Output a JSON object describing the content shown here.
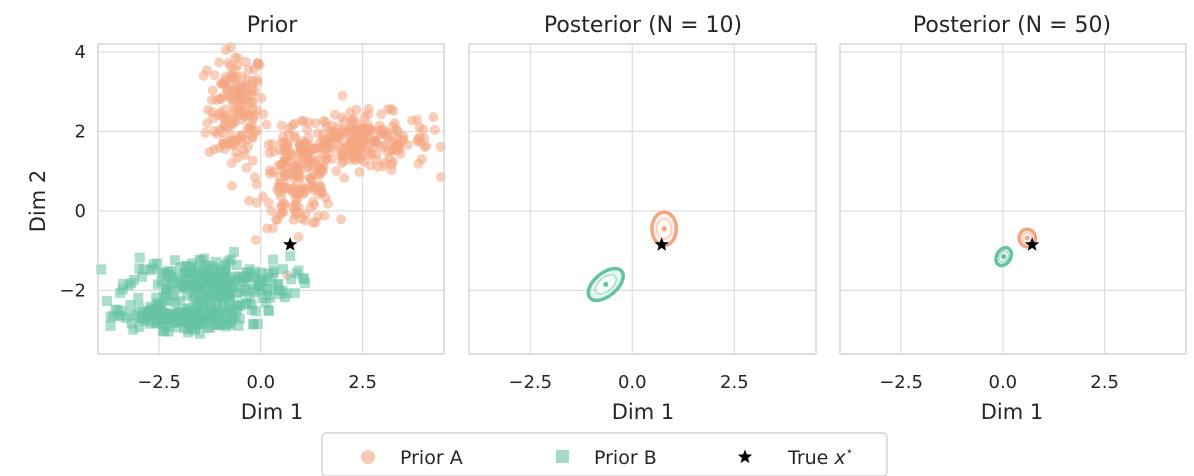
{
  "chart_data": [
    {
      "type": "scatter",
      "title": "Prior",
      "xlabel": "Dim 1",
      "ylabel": "Dim 2",
      "xlim": [
        -4.0,
        4.5
      ],
      "ylim": [
        -3.6,
        4.2
      ],
      "xticks": [
        -2.5,
        0.0,
        2.5
      ],
      "xtick_labels": [
        "−2.5",
        "0.0",
        "2.5"
      ],
      "yticks": [
        -2,
        0,
        2,
        4
      ],
      "ytick_labels": [
        "−2",
        "0",
        "2",
        "4"
      ],
      "grid": true,
      "series": [
        {
          "name": "Prior A",
          "marker": "circle",
          "color": "#f4a582",
          "clusters": [
            {
              "center": [
                -0.6,
                2.6
              ],
              "spread": [
                0.35,
                0.75
              ],
              "count": 160
            },
            {
              "center": [
                2.4,
                1.75
              ],
              "spread": [
                0.9,
                0.35
              ],
              "count": 230
            },
            {
              "center": [
                0.9,
                0.8
              ],
              "spread": [
                0.45,
                0.6
              ],
              "count": 170
            }
          ]
        },
        {
          "name": "Prior B",
          "marker": "square",
          "color": "#66c2a5",
          "clusters": [
            {
              "center": [
                -1.3,
                -1.85
              ],
              "spread": [
                1.0,
                0.35
              ],
              "count": 260
            },
            {
              "center": [
                -1.9,
                -2.7
              ],
              "spread": [
                0.8,
                0.15
              ],
              "count": 180
            }
          ]
        }
      ],
      "true_point": {
        "name": "True x*",
        "x": 0.72,
        "y": -0.85,
        "color": "#000000"
      }
    },
    {
      "type": "scatter",
      "title": "Posterior (N = 10)",
      "xlabel": "Dim 1",
      "xlim": [
        -4.0,
        4.5
      ],
      "ylim": [
        -3.6,
        4.2
      ],
      "xticks": [
        -2.5,
        0.0,
        2.5
      ],
      "xtick_labels": [
        "−2.5",
        "0.0",
        "2.5"
      ],
      "yticks": [
        -2,
        0,
        2,
        4
      ],
      "grid": true,
      "ellipses": [
        {
          "series": "Prior A",
          "color": "#f4a582",
          "center": [
            0.78,
            -0.45
          ],
          "rx": 0.3,
          "ry": 0.42,
          "angle": 0
        },
        {
          "series": "Prior B",
          "color": "#66c2a5",
          "center": [
            -0.65,
            -1.85
          ],
          "rx": 0.28,
          "ry": 0.52,
          "angle": 50
        }
      ],
      "true_point": {
        "name": "True x*",
        "x": 0.72,
        "y": -0.85,
        "color": "#000000"
      }
    },
    {
      "type": "scatter",
      "title": "Posterior (N = 50)",
      "xlabel": "Dim 1",
      "xlim": [
        -4.0,
        4.5
      ],
      "ylim": [
        -3.6,
        4.2
      ],
      "xticks": [
        -2.5,
        0.0,
        2.5
      ],
      "xtick_labels": [
        "−2.5",
        "0.0",
        "2.5"
      ],
      "yticks": [
        -2,
        0,
        2,
        4
      ],
      "grid": true,
      "ellipses": [
        {
          "series": "Prior A",
          "color": "#f4a582",
          "center": [
            0.6,
            -0.68
          ],
          "rx": 0.2,
          "ry": 0.22,
          "angle": 0
        },
        {
          "series": "Prior B",
          "color": "#66c2a5",
          "center": [
            0.02,
            -1.15
          ],
          "rx": 0.17,
          "ry": 0.24,
          "angle": 30
        }
      ],
      "true_point": {
        "name": "True x*",
        "x": 0.72,
        "y": -0.85,
        "color": "#000000"
      }
    }
  ],
  "legend": {
    "placement": "bottom-center",
    "items": [
      {
        "label": "Prior A",
        "marker": "circle",
        "color": "#f4a582"
      },
      {
        "label": "Prior B",
        "marker": "square",
        "color": "#66c2a5"
      },
      {
        "label": "True x*",
        "marker": "star",
        "color": "#000000"
      }
    ]
  }
}
